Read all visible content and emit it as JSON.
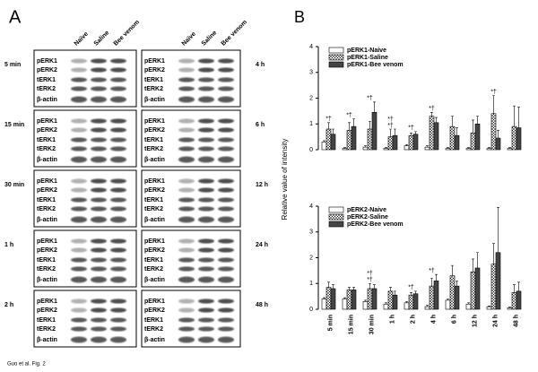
{
  "panel_a": {
    "letter": "A",
    "column_headers": [
      "Naïve",
      "Saline",
      "Bee venom"
    ],
    "row_labels": [
      "pERK1",
      "pERK2",
      "tERK1",
      "tERK2",
      "β-actin"
    ],
    "left_times": [
      "5 min",
      "15 min",
      "30 min",
      "1 h",
      "2 h"
    ],
    "right_times": [
      "4 h",
      "6 h",
      "12 h",
      "24 h",
      "48 h"
    ]
  },
  "panel_b": {
    "letter": "B",
    "y_label": "Relative value of intensity"
  },
  "caption": "Guo et al. Fig. 2",
  "chart_data": [
    {
      "type": "bar",
      "categories": [
        "5 min",
        "15 min",
        "30 min",
        "1 h",
        "2 h",
        "4 h",
        "6 h",
        "12 h",
        "24 h",
        "48 h"
      ],
      "series": [
        {
          "name": "pERK1-Naive",
          "color": "#ffffff",
          "values": [
            0.3,
            0.05,
            0.1,
            0.05,
            0.15,
            0.1,
            0.05,
            0.05,
            0.05,
            0.05
          ],
          "errors": [
            0.05,
            0.03,
            0.05,
            0.03,
            0.05,
            0.05,
            0.03,
            0.03,
            0.03,
            0.03
          ]
        },
        {
          "name": "pERK1-Saline",
          "color": "#ffffff",
          "fill_pattern": "crosshatch",
          "values": [
            0.8,
            0.75,
            0.8,
            0.5,
            0.55,
            1.3,
            0.9,
            0.65,
            1.4,
            0.9
          ],
          "errors": [
            0.25,
            0.3,
            0.3,
            0.3,
            0.1,
            0.15,
            0.4,
            0.5,
            0.7,
            0.8
          ]
        },
        {
          "name": "pERK1-Bee venom",
          "color": "#444444",
          "values": [
            0.6,
            0.9,
            1.45,
            0.55,
            0.6,
            1.05,
            0.55,
            1.0,
            0.45,
            0.85
          ],
          "errors": [
            0.2,
            0.3,
            0.4,
            0.25,
            0.1,
            0.2,
            0.3,
            0.3,
            0.3,
            0.8
          ]
        }
      ],
      "annotations": [
        {
          "text": "*†",
          "category": "5 min"
        },
        {
          "text": "*†",
          "category": "15 min"
        },
        {
          "text": "*†",
          "category": "30 min"
        },
        {
          "text": "*†",
          "category": "1 h"
        },
        {
          "text": "*†",
          "category": "1 h"
        },
        {
          "text": "*†",
          "category": "2 h"
        },
        {
          "text": "*†",
          "category": "4 h"
        },
        {
          "text": "*†",
          "category": "24 h"
        }
      ],
      "ylim": [
        0,
        4
      ],
      "yticks": [
        0,
        1,
        2,
        3,
        4
      ],
      "legend": "top-left"
    },
    {
      "type": "bar",
      "categories": [
        "5 min",
        "15 min",
        "30 min",
        "1 h",
        "2 h",
        "4 h",
        "6 h",
        "12 h",
        "24 h",
        "48 h"
      ],
      "series": [
        {
          "name": "pERK2-Naive",
          "color": "#ffffff",
          "values": [
            0.4,
            0.4,
            0.3,
            0.2,
            0.25,
            0.1,
            0.35,
            0.2,
            0.1,
            0.05
          ],
          "errors": [
            0.05,
            0.05,
            0.05,
            0.05,
            0.05,
            0.05,
            0.05,
            0.05,
            0.03,
            0.03
          ]
        },
        {
          "name": "pERK2-Saline",
          "color": "#ffffff",
          "fill_pattern": "crosshatch",
          "values": [
            0.85,
            0.75,
            0.8,
            0.7,
            0.55,
            0.9,
            1.3,
            1.45,
            1.75,
            0.65
          ],
          "errors": [
            0.2,
            0.1,
            0.2,
            0.15,
            0.1,
            0.3,
            0.4,
            0.5,
            0.8,
            0.3
          ]
        },
        {
          "name": "pERK2-Bee venom",
          "color": "#444444",
          "values": [
            0.8,
            0.75,
            0.8,
            0.55,
            0.6,
            1.1,
            0.9,
            1.6,
            2.2,
            0.7
          ],
          "errors": [
            0.15,
            0.1,
            0.15,
            0.15,
            0.1,
            0.25,
            0.2,
            0.6,
            1.75,
            0.35
          ]
        }
      ],
      "annotations": [
        {
          "text": "*†",
          "category": "30 min"
        },
        {
          "text": "*†",
          "category": "30 min"
        },
        {
          "text": "*†",
          "category": "2 h"
        },
        {
          "text": "*†",
          "category": "4 h"
        }
      ],
      "ylim": [
        0,
        4
      ],
      "yticks": [
        0,
        1,
        2,
        3,
        4
      ],
      "legend": "top-left"
    }
  ]
}
